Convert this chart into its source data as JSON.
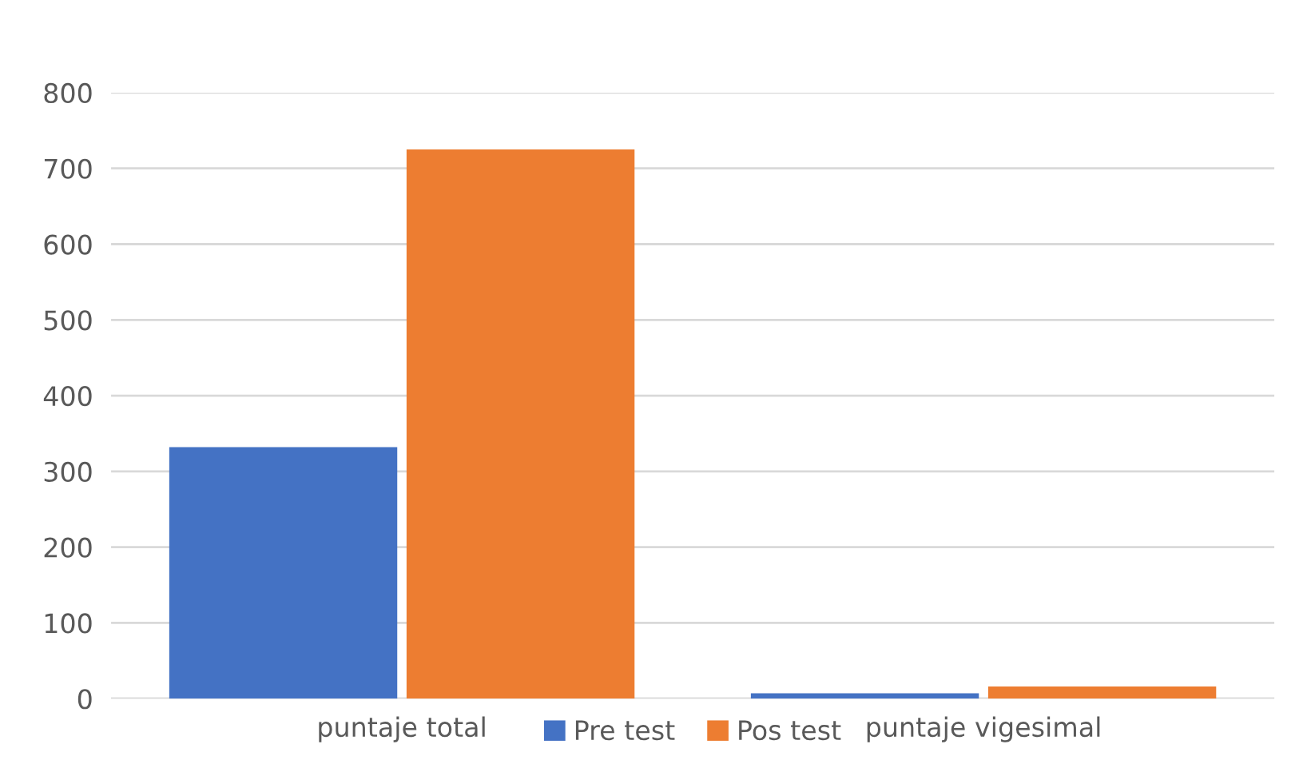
{
  "chart_data": {
    "type": "bar",
    "categories": [
      "puntaje total",
      "puntaje vigesimal"
    ],
    "series": [
      {
        "name": "Pre test",
        "color": "#4472c4",
        "values": [
          332,
          7
        ]
      },
      {
        "name": "Pos test",
        "color": "#ed7d31",
        "values": [
          725,
          16
        ]
      }
    ],
    "ylim": [
      0,
      800
    ],
    "yticks": [
      0,
      100,
      200,
      300,
      400,
      500,
      600,
      700,
      800
    ],
    "grid": "y",
    "legend": "bottom"
  }
}
